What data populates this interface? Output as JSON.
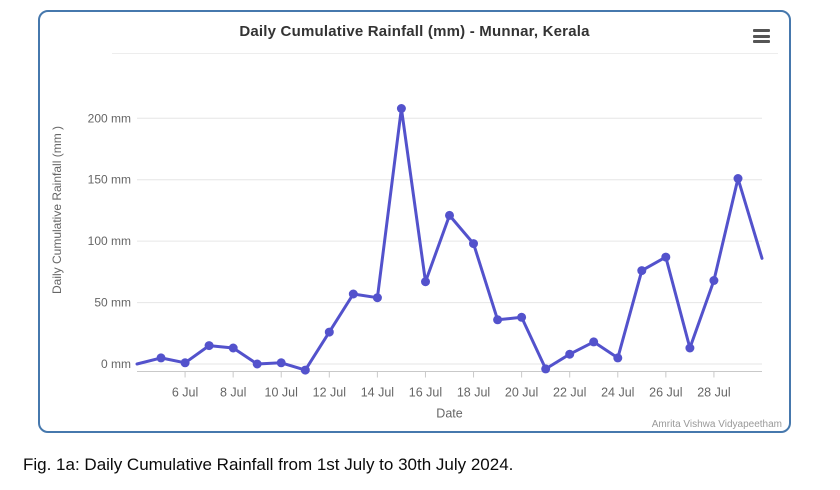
{
  "caption": "Fig. 1a: Daily Cumulative Rainfall from 1st July to 30th July 2024.",
  "chart_data": {
    "type": "line",
    "title": "Daily Cumulative Rainfall (mm) - Munnar, Kerala",
    "xlabel": "Date",
    "ylabel": "Daily Cumulative Rainfall (mm )",
    "credits": "Amrita Vishwa Vidyapeetham",
    "legend": "none",
    "grid": "horizontal",
    "x_unit": "day of July 2024",
    "xlim_days": [
      4,
      30
    ],
    "ylim_mm": [
      -6,
      223
    ],
    "x_ticks": [
      {
        "day": 6,
        "label": "6 Jul"
      },
      {
        "day": 8,
        "label": "8 Jul"
      },
      {
        "day": 10,
        "label": "10 Jul"
      },
      {
        "day": 12,
        "label": "12 Jul"
      },
      {
        "day": 14,
        "label": "14 Jul"
      },
      {
        "day": 16,
        "label": "16 Jul"
      },
      {
        "day": 18,
        "label": "18 Jul"
      },
      {
        "day": 20,
        "label": "20 Jul"
      },
      {
        "day": 22,
        "label": "22 Jul"
      },
      {
        "day": 24,
        "label": "24 Jul"
      },
      {
        "day": 26,
        "label": "26 Jul"
      },
      {
        "day": 28,
        "label": "28 Jul"
      }
    ],
    "y_ticks": [
      {
        "value": 0,
        "label": "0 mm"
      },
      {
        "value": 50,
        "label": "50 mm"
      },
      {
        "value": 100,
        "label": "100 mm"
      },
      {
        "value": 150,
        "label": "150 mm"
      },
      {
        "value": 200,
        "label": "200 mm"
      }
    ],
    "series": [
      {
        "name": "Daily Cumulative Rainfall",
        "points": [
          {
            "day": 4,
            "value": 0,
            "marker": false
          },
          {
            "day": 5,
            "value": 5
          },
          {
            "day": 6,
            "value": 1
          },
          {
            "day": 7,
            "value": 15
          },
          {
            "day": 8,
            "value": 13
          },
          {
            "day": 9,
            "value": 0
          },
          {
            "day": 10,
            "value": 1
          },
          {
            "day": 11,
            "value": -5
          },
          {
            "day": 12,
            "value": 26
          },
          {
            "day": 13,
            "value": 57
          },
          {
            "day": 14,
            "value": 54
          },
          {
            "day": 15,
            "value": 208
          },
          {
            "day": 16,
            "value": 67
          },
          {
            "day": 17,
            "value": 121
          },
          {
            "day": 18,
            "value": 98
          },
          {
            "day": 19,
            "value": 36
          },
          {
            "day": 20,
            "value": 38
          },
          {
            "day": 21,
            "value": -4
          },
          {
            "day": 22,
            "value": 8
          },
          {
            "day": 23,
            "value": 18
          },
          {
            "day": 24,
            "value": 5
          },
          {
            "day": 25,
            "value": 76
          },
          {
            "day": 26,
            "value": 87
          },
          {
            "day": 27,
            "value": 13
          },
          {
            "day": 28,
            "value": 68
          },
          {
            "day": 29,
            "value": 151
          },
          {
            "day": 30,
            "value": 86,
            "marker": false
          }
        ]
      }
    ],
    "colors": {
      "line": "#5352cc",
      "card_border": "#4678ad",
      "grid": "#e6e6e6",
      "axis": "#c9c9c9",
      "labels": "#666666",
      "title": "#333333",
      "credits": "#999999",
      "menu_icon": "#555555"
    }
  }
}
